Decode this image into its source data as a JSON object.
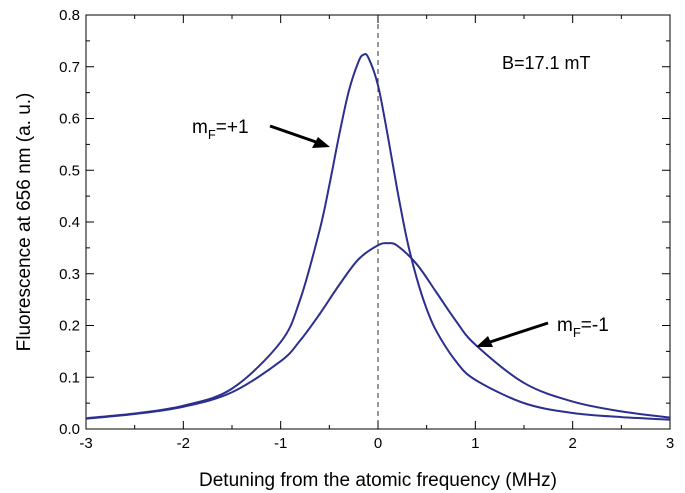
{
  "chart_data": {
    "type": "line",
    "title": "",
    "xlabel": "Detuning from the atomic frequency (MHz)",
    "ylabel": "Fluorescence at 656 nm (a. u.)",
    "xlim": [
      -3,
      3
    ],
    "ylim": [
      0,
      0.8
    ],
    "x_ticks": [
      -3,
      -2,
      -1,
      0,
      1,
      2,
      3
    ],
    "y_ticks": [
      0.0,
      0.1,
      0.2,
      0.3,
      0.4,
      0.5,
      0.6,
      0.7,
      0.8
    ],
    "x_tick_labels": [
      "-3",
      "-2",
      "-1",
      "0",
      "1",
      "2",
      "3"
    ],
    "y_tick_labels": [
      "0.0",
      "0.1",
      "0.2",
      "0.3",
      "0.4",
      "0.5",
      "0.6",
      "0.7",
      "0.8"
    ],
    "grid": false,
    "reference_line": {
      "x": 0,
      "style": "dashed"
    },
    "field_label": "B=17.1 mT",
    "line_color": "#2b2f8f",
    "series": [
      {
        "label_main": "m",
        "label_sub": "F",
        "label_rest": "=+1",
        "x": [
          -3.0,
          -2.5,
          -2.0,
          -1.5,
          -1.0,
          -0.8,
          -0.6,
          -0.5,
          -0.4,
          -0.3,
          -0.2,
          -0.15,
          -0.1,
          0.0,
          0.1,
          0.2,
          0.3,
          0.4,
          0.5,
          0.6,
          0.8,
          1.0,
          1.5,
          2.0,
          2.5,
          3.0
        ],
        "y": [
          0.021,
          0.03,
          0.045,
          0.078,
          0.168,
          0.25,
          0.384,
          0.471,
          0.567,
          0.653,
          0.71,
          0.723,
          0.718,
          0.664,
          0.567,
          0.46,
          0.364,
          0.29,
          0.232,
          0.189,
          0.131,
          0.095,
          0.05,
          0.031,
          0.023,
          0.018
        ]
      },
      {
        "label_main": "m",
        "label_sub": "F",
        "label_rest": "=-1",
        "x": [
          -3.0,
          -2.5,
          -2.0,
          -1.5,
          -1.0,
          -0.8,
          -0.6,
          -0.4,
          -0.2,
          0.0,
          0.1,
          0.2,
          0.4,
          0.6,
          0.8,
          1.0,
          1.5,
          2.0,
          2.5,
          3.0
        ],
        "y": [
          0.02,
          0.029,
          0.043,
          0.071,
          0.131,
          0.171,
          0.222,
          0.278,
          0.328,
          0.355,
          0.359,
          0.354,
          0.318,
          0.264,
          0.209,
          0.163,
          0.089,
          0.053,
          0.034,
          0.022
        ]
      }
    ]
  }
}
